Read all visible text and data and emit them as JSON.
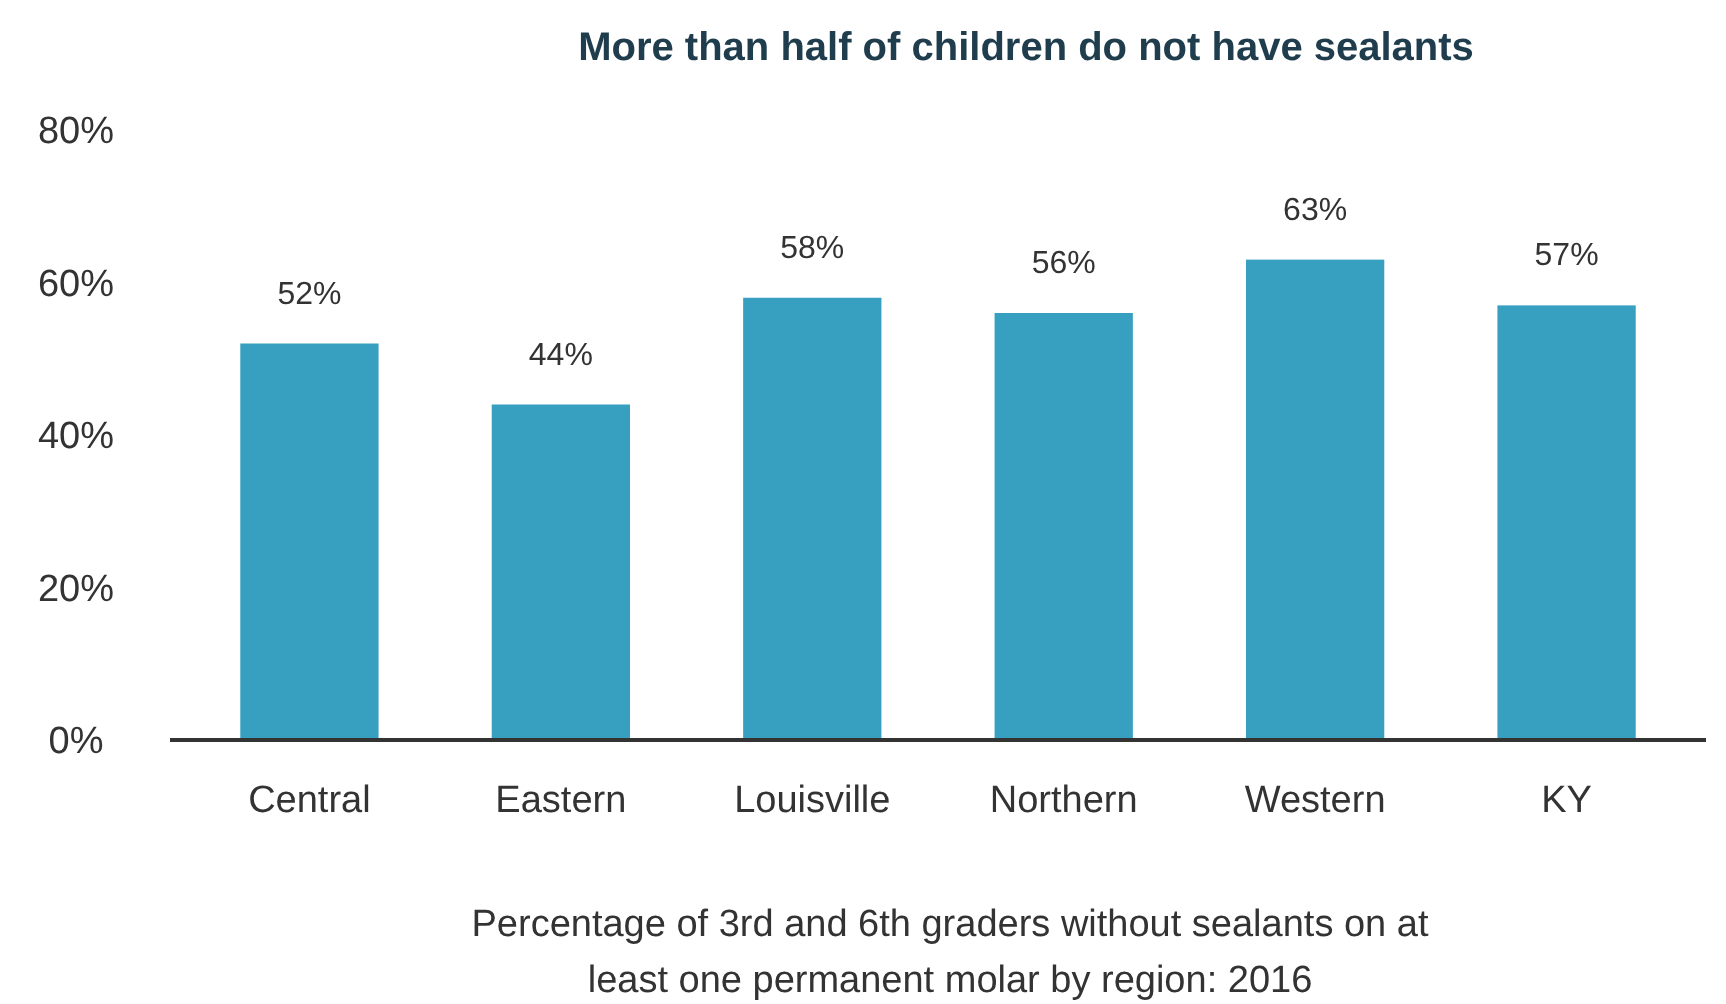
{
  "chart_data": {
    "type": "bar",
    "title": "More than half of children do not have sealants",
    "xlabel": "Percentage of 3rd and 6th graders without sealants on at least one permanent molar by region: 2016",
    "categories": [
      "Central",
      "Eastern",
      "Louisville",
      "Northern",
      "Western",
      "KY"
    ],
    "values": [
      52,
      44,
      58,
      56,
      63,
      57
    ],
    "color": "#37a0c0",
    "value_labels": [
      "52%",
      "44%",
      "58%",
      "56%",
      "63%",
      "57%"
    ],
    "ylim": [
      0,
      80
    ],
    "yticks": [
      {
        "value": 0,
        "label": "0%"
      },
      {
        "value": 20,
        "label": "20%"
      },
      {
        "value": 40,
        "label": "40%"
      },
      {
        "value": 60,
        "label": "60%"
      },
      {
        "value": 80,
        "label": "80%"
      }
    ],
    "grid": false
  }
}
